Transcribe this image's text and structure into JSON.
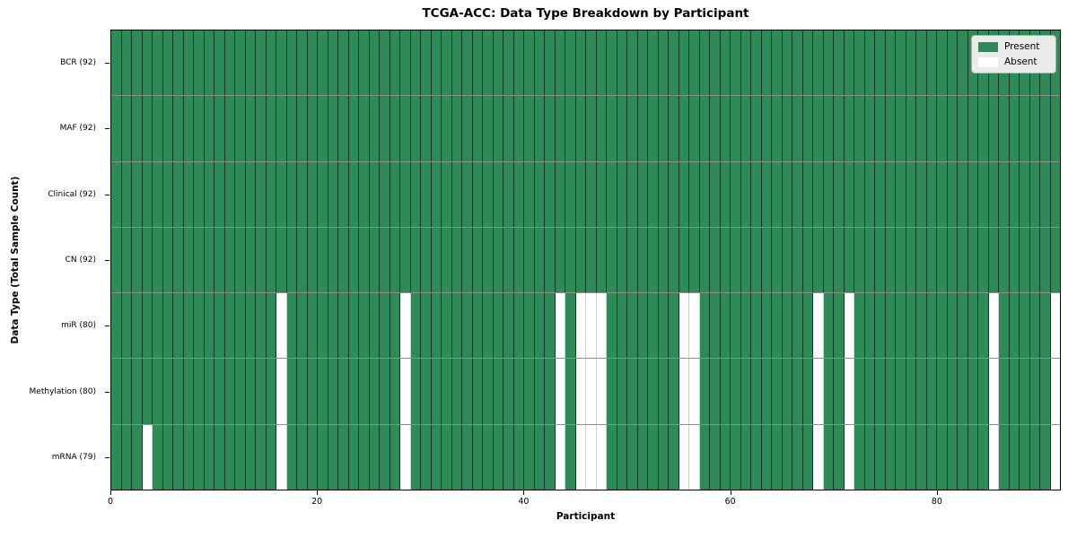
{
  "title": "TCGA-ACC: Data Type Breakdown by Participant",
  "chart_data": {
    "type": "heatmap",
    "title": "TCGA-ACC: Data Type Breakdown by Participant",
    "xlabel": "Participant",
    "ylabel": "Data Type (Total Sample Count)",
    "x_range": [
      0,
      92
    ],
    "x_ticks": [
      0,
      20,
      40,
      60,
      80
    ],
    "n_participants": 92,
    "grid": false,
    "legend_position": "upper right",
    "legend": [
      {
        "label": "Present",
        "color": "#2e8b57"
      },
      {
        "label": "Absent",
        "color": "#ffffff"
      }
    ],
    "rows": [
      {
        "label": "BCR (92)",
        "data_type": "BCR",
        "present_count": 92,
        "absent_participants": []
      },
      {
        "label": "MAF (92)",
        "data_type": "MAF",
        "present_count": 92,
        "absent_participants": []
      },
      {
        "label": "Clinical (92)",
        "data_type": "Clinical",
        "present_count": 92,
        "absent_participants": []
      },
      {
        "label": "CN (92)",
        "data_type": "CN",
        "present_count": 92,
        "absent_participants": []
      },
      {
        "label": "miR (80)",
        "data_type": "miR",
        "present_count": 80,
        "absent_participants": [
          16,
          28,
          43,
          45,
          46,
          47,
          55,
          56,
          68,
          71,
          85,
          91
        ]
      },
      {
        "label": "Methylation (80)",
        "data_type": "Methylation",
        "present_count": 80,
        "absent_participants": [
          16,
          28,
          43,
          45,
          46,
          47,
          55,
          56,
          68,
          71,
          85,
          91
        ]
      },
      {
        "label": "mRNA (79)",
        "data_type": "mRNA",
        "present_count": 79,
        "absent_participants": [
          3,
          16,
          28,
          43,
          45,
          46,
          47,
          55,
          56,
          68,
          71,
          85,
          91
        ]
      }
    ]
  },
  "colors": {
    "present": "#2e8b57",
    "absent": "#ffffff",
    "plot_border": "#000000",
    "row_separator": "#8a918c"
  }
}
